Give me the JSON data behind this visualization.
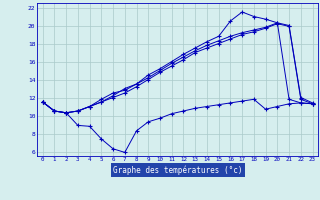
{
  "title": "Graphe des températures (°c)",
  "background_color": "#d6eeee",
  "grid_color": "#aacaca",
  "line_color": "#0000bb",
  "xlabel_bg": "#2244aa",
  "xlabel_fg": "#ffffff",
  "ylim": [
    5.5,
    22.5
  ],
  "yticks": [
    6,
    8,
    10,
    12,
    14,
    16,
    18,
    20,
    22
  ],
  "series1": [
    11.5,
    10.5,
    10.3,
    8.9,
    8.8,
    7.4,
    6.3,
    5.9,
    8.3,
    9.3,
    9.7,
    10.2,
    10.5,
    10.8,
    11.0,
    11.2,
    11.4,
    11.6,
    11.8,
    10.7,
    11.0,
    11.3,
    11.4,
    11.3
  ],
  "series2": [
    11.5,
    10.5,
    10.3,
    10.5,
    11.0,
    11.8,
    12.5,
    12.8,
    13.5,
    14.2,
    15.0,
    15.8,
    16.5,
    17.2,
    17.8,
    18.3,
    18.8,
    19.2,
    19.5,
    19.8,
    20.3,
    20.0,
    12.0,
    11.4
  ],
  "series3": [
    11.5,
    10.5,
    10.3,
    10.5,
    11.0,
    11.5,
    12.0,
    12.5,
    13.2,
    14.0,
    14.8,
    15.5,
    16.2,
    17.0,
    17.5,
    18.0,
    18.5,
    19.0,
    19.3,
    19.7,
    20.2,
    19.9,
    11.8,
    11.3
  ],
  "series4": [
    11.5,
    10.5,
    10.3,
    10.5,
    11.0,
    11.5,
    12.2,
    13.0,
    13.5,
    14.5,
    15.2,
    16.0,
    16.8,
    17.5,
    18.2,
    18.8,
    20.5,
    21.5,
    21.0,
    20.7,
    20.3,
    11.8,
    11.4,
    11.3
  ]
}
